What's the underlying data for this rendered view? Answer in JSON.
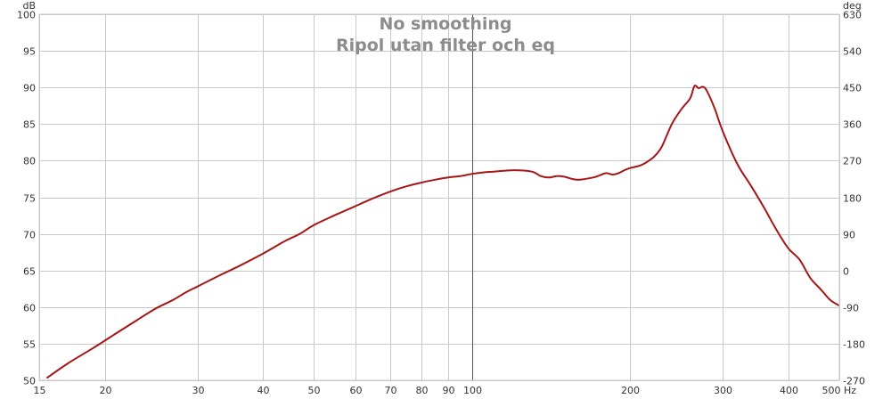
{
  "chart_data": {
    "type": "line",
    "title": "No smoothing",
    "subtitle": "Ripol utan filter och eq",
    "xscale": "log",
    "xlim": [
      15,
      500
    ],
    "ylim": [
      50,
      100
    ],
    "y2lim": [
      -270,
      630
    ],
    "grid": true,
    "x_unit": "Hz",
    "y_unit": "dB",
    "y2_unit": "deg",
    "colors": {
      "series": "#a51616",
      "grid": "#c8c8c8",
      "center_line": "#555555",
      "title": "#8c8c8c"
    },
    "x_ticks": [
      {
        "v": 15,
        "label": "15"
      },
      {
        "v": 20,
        "label": "20"
      },
      {
        "v": 30,
        "label": "30"
      },
      {
        "v": 40,
        "label": "40"
      },
      {
        "v": 50,
        "label": "50"
      },
      {
        "v": 60,
        "label": "60"
      },
      {
        "v": 70,
        "label": "70"
      },
      {
        "v": 80,
        "label": "80"
      },
      {
        "v": 90,
        "label": "90"
      },
      {
        "v": 100,
        "label": "100"
      },
      {
        "v": 200,
        "label": "200"
      },
      {
        "v": 300,
        "label": "300"
      },
      {
        "v": 400,
        "label": "400"
      },
      {
        "v": 500,
        "label": "500"
      }
    ],
    "y_ticks": [
      {
        "v": 100,
        "label": "100"
      },
      {
        "v": 95,
        "label": "95"
      },
      {
        "v": 90,
        "label": "90"
      },
      {
        "v": 85,
        "label": "85"
      },
      {
        "v": 80,
        "label": "80"
      },
      {
        "v": 75,
        "label": "75"
      },
      {
        "v": 70,
        "label": "70"
      },
      {
        "v": 65,
        "label": "65"
      },
      {
        "v": 60,
        "label": "60"
      },
      {
        "v": 55,
        "label": "55"
      },
      {
        "v": 50,
        "label": "50"
      }
    ],
    "y2_ticks": [
      {
        "v": 630,
        "label": "630"
      },
      {
        "v": 540,
        "label": "540"
      },
      {
        "v": 450,
        "label": "450"
      },
      {
        "v": 360,
        "label": "360"
      },
      {
        "v": 270,
        "label": "270"
      },
      {
        "v": 180,
        "label": "180"
      },
      {
        "v": 90,
        "label": "90"
      },
      {
        "v": 0,
        "label": "0"
      },
      {
        "v": -90,
        "label": "-90"
      },
      {
        "v": -180,
        "label": "-180"
      },
      {
        "v": -270,
        "label": "-270"
      }
    ],
    "series": [
      {
        "x": [
          15.5,
          17,
          19,
          21,
          23,
          25,
          27,
          28.5,
          30,
          33,
          36,
          40,
          44,
          47,
          50,
          55,
          60,
          65,
          70,
          75,
          80,
          85,
          90,
          95,
          100,
          105,
          110,
          120,
          130,
          135,
          140,
          145,
          150,
          155,
          160,
          170,
          175,
          180,
          185,
          190,
          195,
          200,
          210,
          220,
          225,
          230,
          240,
          250,
          260,
          265,
          270,
          275,
          280,
          290,
          300,
          320,
          340,
          360,
          380,
          400,
          420,
          440,
          460,
          480,
          500
        ],
        "y": [
          50.3,
          52.3,
          54.4,
          56.4,
          58.2,
          59.8,
          61.0,
          62.0,
          62.8,
          64.3,
          65.6,
          67.3,
          69.0,
          70.0,
          71.2,
          72.6,
          73.8,
          74.9,
          75.8,
          76.5,
          77.0,
          77.4,
          77.7,
          77.9,
          78.2,
          78.4,
          78.5,
          78.7,
          78.5,
          77.9,
          77.7,
          77.9,
          77.8,
          77.5,
          77.4,
          77.7,
          78.0,
          78.3,
          78.1,
          78.3,
          78.7,
          79.0,
          79.4,
          80.3,
          81.0,
          82.0,
          85.0,
          87.0,
          88.5,
          90.2,
          89.9,
          90.1,
          89.5,
          87.0,
          84.0,
          79.5,
          76.5,
          73.5,
          70.5,
          68.0,
          66.5,
          64.0,
          62.5,
          61.0,
          60.2
        ]
      }
    ]
  }
}
